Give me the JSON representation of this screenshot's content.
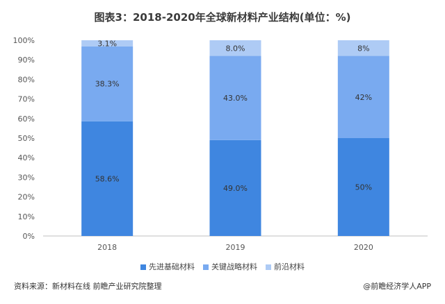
{
  "title": "图表3：2018-2020年全球新材料产业结构(单位：%)",
  "source": "资料来源：新材料在线 前瞻产业研究院整理",
  "brand": "@前瞻经济学人APP",
  "chart_data": {
    "type": "bar",
    "stacked": true,
    "categories": [
      "2018",
      "2019",
      "2020"
    ],
    "series": [
      {
        "name": "先进基础材料",
        "values": [
          58.6,
          49.0,
          50
        ],
        "labels": [
          "58.6%",
          "49.0%",
          "50%"
        ],
        "color": "#3f86e0"
      },
      {
        "name": "关键战略材料",
        "values": [
          38.3,
          43.0,
          42
        ],
        "labels": [
          "38.3%",
          "43.0%",
          "42%"
        ],
        "color": "#79aaf0"
      },
      {
        "name": "前沿材料",
        "values": [
          3.1,
          8.0,
          8
        ],
        "labels": [
          "3.1%",
          "8.0%",
          "8%"
        ],
        "color": "#aecbf5"
      }
    ],
    "yticks": [
      "0%",
      "10%",
      "20%",
      "30%",
      "40%",
      "50%",
      "60%",
      "70%",
      "80%",
      "90%",
      "100%"
    ],
    "ylim": [
      0,
      100
    ],
    "grid": false,
    "legend": "bottom"
  }
}
